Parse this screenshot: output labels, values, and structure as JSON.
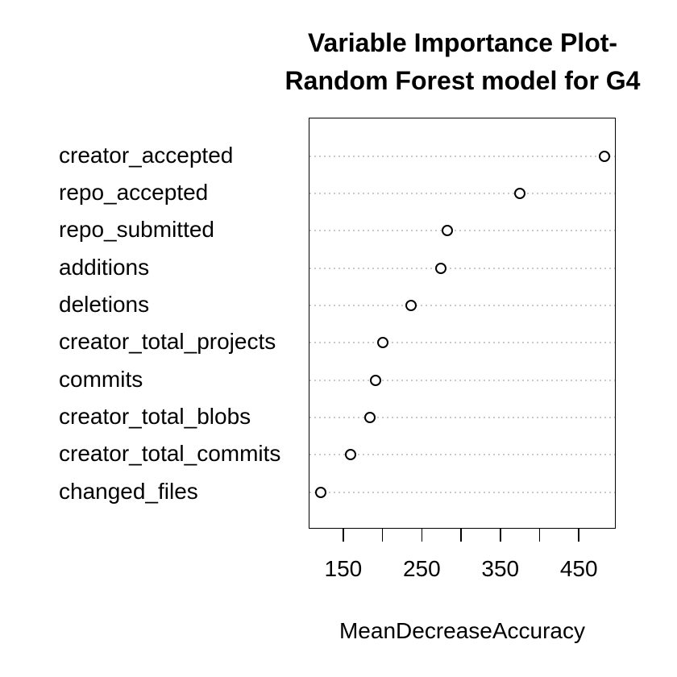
{
  "page": {
    "background": "#ffffff"
  },
  "chart_data": {
    "type": "scatter",
    "variant": "dotchart",
    "title_lines": [
      "Variable Importance Plot-",
      "Random Forest model for G4"
    ],
    "xlabel": "MeanDecreaseAccuracy",
    "categories": [
      "creator_accepted",
      "repo_accepted",
      "repo_submitted",
      "additions",
      "deletions",
      "creator_total_projects",
      "commits",
      "creator_total_blobs",
      "creator_total_commits",
      "changed_files"
    ],
    "values": [
      482,
      374,
      282,
      273,
      235,
      199,
      190,
      183,
      158,
      120
    ],
    "xlim": [
      106,
      497
    ],
    "x_ticks": [
      150,
      200,
      250,
      300,
      350,
      400,
      450
    ],
    "x_tick_labels": [
      "150",
      "250",
      "350",
      "450"
    ],
    "x_tick_label_values": [
      150,
      250,
      350,
      450
    ],
    "grid": "dotted horizontal line per category, full plot width",
    "legend": "none",
    "colors": {
      "point_stroke": "#000000",
      "point_fill": "#ffffff",
      "gridline": "#c9c9c9",
      "text": "#000000",
      "box_border": "#000000"
    }
  }
}
